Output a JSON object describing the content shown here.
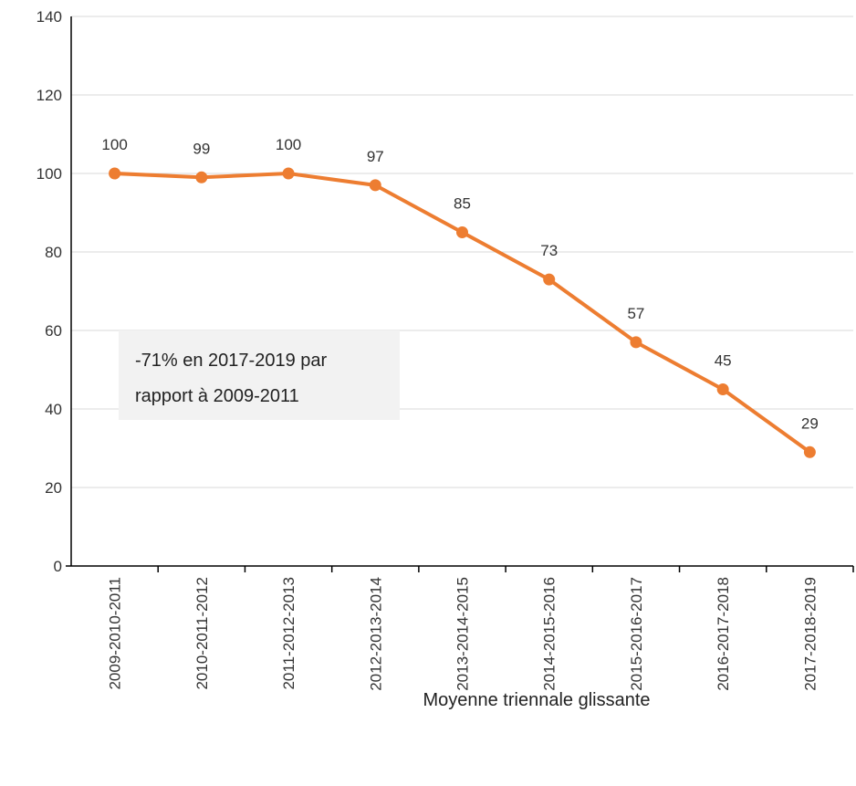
{
  "chart_data": {
    "type": "line",
    "categories": [
      "2009-2010-2011",
      "2010-2011-2012",
      "2011-2012-2013",
      "2012-2013-2014",
      "2013-2014-2015",
      "2014-2015-2016",
      "2015-2016-2017",
      "2016-2017-2018",
      "2017-2018-2019"
    ],
    "series": [
      {
        "values": [
          100,
          99,
          100,
          97,
          85,
          73,
          57,
          45,
          29
        ],
        "data_labels": [
          "100",
          "99",
          "100",
          "97",
          "85",
          "73",
          "57",
          "45",
          "29"
        ],
        "color": "#ed7d31"
      }
    ],
    "xlabel": "Moyenne triennale glissante",
    "ylabel": "",
    "ylim": [
      0,
      140
    ],
    "yticks": [
      0,
      20,
      40,
      60,
      80,
      100,
      120,
      140
    ],
    "grid": true,
    "legend": "none",
    "annotation": {
      "lines": [
        "-71% en 2017-2019 par",
        "rapport à 2009-2011"
      ]
    }
  }
}
